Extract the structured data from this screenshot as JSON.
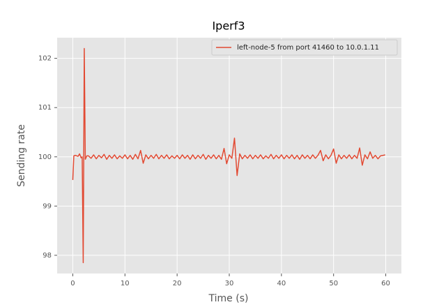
{
  "chart_data": {
    "type": "line",
    "title": "Iperf3",
    "x_label": "Time (s)",
    "y_label": "Sending rate",
    "xlim": [
      -3,
      63
    ],
    "ylim": [
      97.63,
      102.42
    ],
    "xticks": [
      0,
      10,
      20,
      30,
      40,
      50,
      60
    ],
    "yticks": [
      98,
      99,
      100,
      101,
      102
    ],
    "grid": true,
    "legend": "upper right",
    "x": [
      0,
      0.2,
      0.5,
      1.0,
      1.3,
      1.6,
      1.8,
      2.0,
      2.2,
      2.4,
      2.7,
      3.0,
      3.5,
      4.0,
      4.5,
      5.0,
      5.5,
      6.0,
      6.5,
      7.0,
      7.5,
      8.0,
      8.5,
      9.0,
      9.5,
      10.0,
      10.5,
      11.0,
      11.5,
      12.0,
      12.5,
      13.0,
      13.5,
      14.0,
      14.5,
      15.0,
      15.5,
      16.0,
      16.5,
      17.0,
      17.5,
      18.0,
      18.5,
      19.0,
      19.5,
      20.0,
      20.5,
      21.0,
      21.5,
      22.0,
      22.5,
      23.0,
      23.5,
      24.0,
      24.5,
      25.0,
      25.5,
      26.0,
      26.5,
      27.0,
      27.5,
      28.0,
      28.5,
      29.0,
      29.5,
      30.0,
      30.5,
      31.0,
      31.5,
      32.0,
      32.5,
      33.0,
      33.5,
      34.0,
      34.5,
      35.0,
      35.5,
      36.0,
      36.5,
      37.0,
      37.5,
      38.0,
      38.5,
      39.0,
      39.5,
      40.0,
      40.5,
      41.0,
      41.5,
      42.0,
      42.5,
      43.0,
      43.5,
      44.0,
      44.5,
      45.0,
      45.5,
      46.0,
      46.5,
      47.0,
      47.5,
      48.0,
      48.5,
      49.0,
      49.5,
      50.0,
      50.5,
      51.0,
      51.5,
      52.0,
      52.5,
      53.0,
      53.5,
      54.0,
      54.5,
      55.0,
      55.5,
      56.0,
      56.5,
      57.0,
      57.5,
      58.0,
      58.5,
      59.0,
      59.5,
      59.9
    ],
    "series": [
      {
        "name": "left-node-5 from port 41460 to 10.0.1.11",
        "color": "#e24a33",
        "values": [
          99.53,
          100.02,
          100.03,
          100.01,
          100.06,
          99.98,
          100.0,
          97.85,
          102.2,
          99.95,
          100.02,
          100.02,
          99.97,
          100.04,
          99.96,
          100.03,
          99.98,
          100.05,
          99.95,
          100.03,
          99.97,
          100.04,
          99.96,
          100.02,
          99.97,
          100.04,
          99.96,
          100.03,
          99.95,
          100.05,
          99.96,
          100.13,
          99.87,
          100.04,
          99.96,
          100.03,
          99.97,
          100.05,
          99.96,
          100.03,
          99.97,
          100.04,
          99.96,
          100.02,
          99.97,
          100.03,
          99.96,
          100.04,
          99.97,
          100.03,
          99.95,
          100.04,
          99.96,
          100.03,
          99.97,
          100.05,
          99.95,
          100.03,
          99.97,
          100.04,
          99.96,
          100.03,
          99.95,
          100.17,
          99.86,
          100.04,
          99.97,
          100.38,
          99.62,
          100.06,
          99.96,
          100.03,
          99.97,
          100.04,
          99.96,
          100.03,
          99.97,
          100.04,
          99.96,
          100.02,
          99.97,
          100.05,
          99.96,
          100.03,
          99.97,
          100.04,
          99.96,
          100.03,
          99.97,
          100.04,
          99.96,
          100.03,
          99.95,
          100.04,
          99.97,
          100.03,
          99.96,
          100.04,
          99.97,
          100.03,
          100.13,
          99.92,
          100.04,
          99.96,
          100.03,
          100.16,
          99.87,
          100.04,
          99.96,
          100.03,
          99.97,
          100.04,
          99.96,
          100.03,
          99.97,
          100.18,
          99.83,
          100.04,
          99.96,
          100.1,
          99.97,
          100.03,
          99.96,
          100.02,
          100.03,
          100.04
        ]
      }
    ]
  }
}
